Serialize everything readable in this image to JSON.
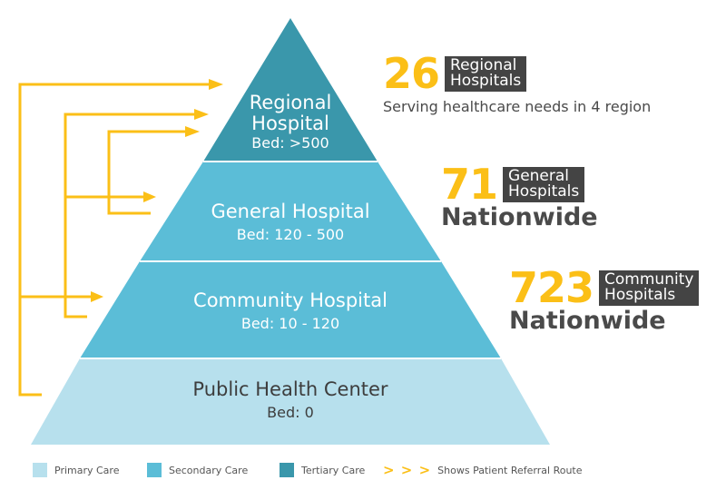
{
  "pyramid": {
    "tiers": [
      {
        "name_lines": [
          "Regional",
          "Hospital"
        ],
        "bed": "Bed: >500",
        "color": "#3a97ab"
      },
      {
        "name_lines": [
          "General Hospital"
        ],
        "bed": "Bed: 120 - 500",
        "color": "#5bbdd7"
      },
      {
        "name_lines": [
          "Community Hospital"
        ],
        "bed": "Bed: 10 - 120",
        "color": "#5bbdd7"
      },
      {
        "name_lines": [
          "Public Health Center"
        ],
        "bed": "Bed: 0",
        "color": "#b7e0ed"
      }
    ]
  },
  "stats": {
    "regional": {
      "count": "26",
      "tag": "Regional\nHospitals",
      "desc": "Serving healthcare needs in 4 region"
    },
    "general": {
      "count": "71",
      "tag": "General\nHospitals",
      "desc": "Nationwide"
    },
    "community": {
      "count": "723",
      "tag": "Community\nHospitals",
      "desc": "Nationwide"
    }
  },
  "legend": {
    "primary": {
      "label": "Primary Care",
      "color": "#b7e0ed"
    },
    "secondary": {
      "label": "Secondary Care",
      "color": "#5bbdd7"
    },
    "tertiary": {
      "label": "Tertiary Care",
      "color": "#3a97ab"
    },
    "referral": {
      "label": "Shows Patient Referral Route",
      "symbol": "> > >"
    }
  },
  "colors": {
    "arrow": "#fbbf17",
    "divider": "#ffffff"
  }
}
